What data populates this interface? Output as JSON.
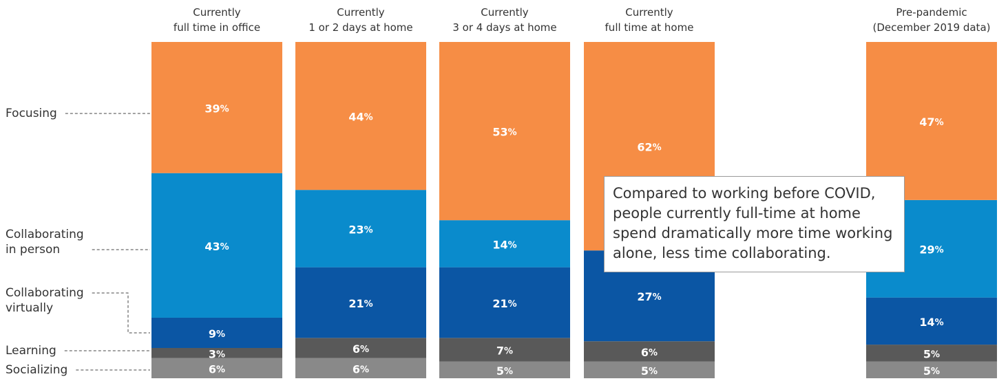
{
  "chart_data": {
    "type": "bar",
    "stacked": true,
    "categories": [
      "Currently\nfull time in office",
      "Currently\n1 or 2 days at home",
      "Currently\n3 or 4 days at home",
      "Currently\nfull time at home",
      "Pre-pandemic\n(December 2019 data)"
    ],
    "ylim": [
      0,
      100
    ],
    "series": [
      {
        "name": "Focusing",
        "color": "#f68d45",
        "values": [
          39,
          44,
          53,
          62,
          47
        ],
        "value_labels": [
          "39%",
          "44%",
          "53%",
          "62%",
          "47%"
        ]
      },
      {
        "name": "Collaborating\nin person",
        "color": "#0a8bcc",
        "values": [
          43,
          23,
          14,
          0,
          29
        ],
        "value_labels": [
          "43%",
          "23%",
          "14%",
          null,
          "29%"
        ]
      },
      {
        "name": "Collaborating\nvirtually",
        "color": "#0b56a4",
        "values": [
          9,
          21,
          21,
          27,
          14
        ],
        "value_labels": [
          "9%",
          "21%",
          "21%",
          "27%",
          "14%"
        ]
      },
      {
        "name": "Learning",
        "color": "#595959",
        "values": [
          3,
          6,
          7,
          6,
          5
        ],
        "value_labels": [
          "3%",
          "6%",
          "7%",
          "6%",
          "5%"
        ]
      },
      {
        "name": "Socializing",
        "color": "#898989",
        "values": [
          6,
          6,
          5,
          5,
          5
        ],
        "value_labels": [
          "6%",
          "6%",
          "5%",
          "5%",
          "5%"
        ]
      }
    ],
    "annotation": "Compared to working before COVID, people currently full-time at home spend dramatically more time working alone, less time collaborating."
  }
}
